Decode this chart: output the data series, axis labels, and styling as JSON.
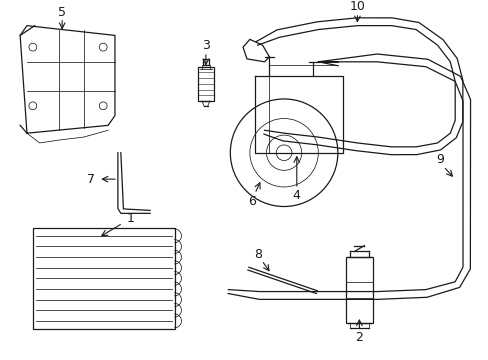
{
  "bg_color": "#ffffff",
  "line_color": "#1a1a1a",
  "lw": 0.9,
  "tlw": 0.55,
  "fig_w": 4.89,
  "fig_h": 3.6,
  "xmax": 489,
  "ymax": 360
}
